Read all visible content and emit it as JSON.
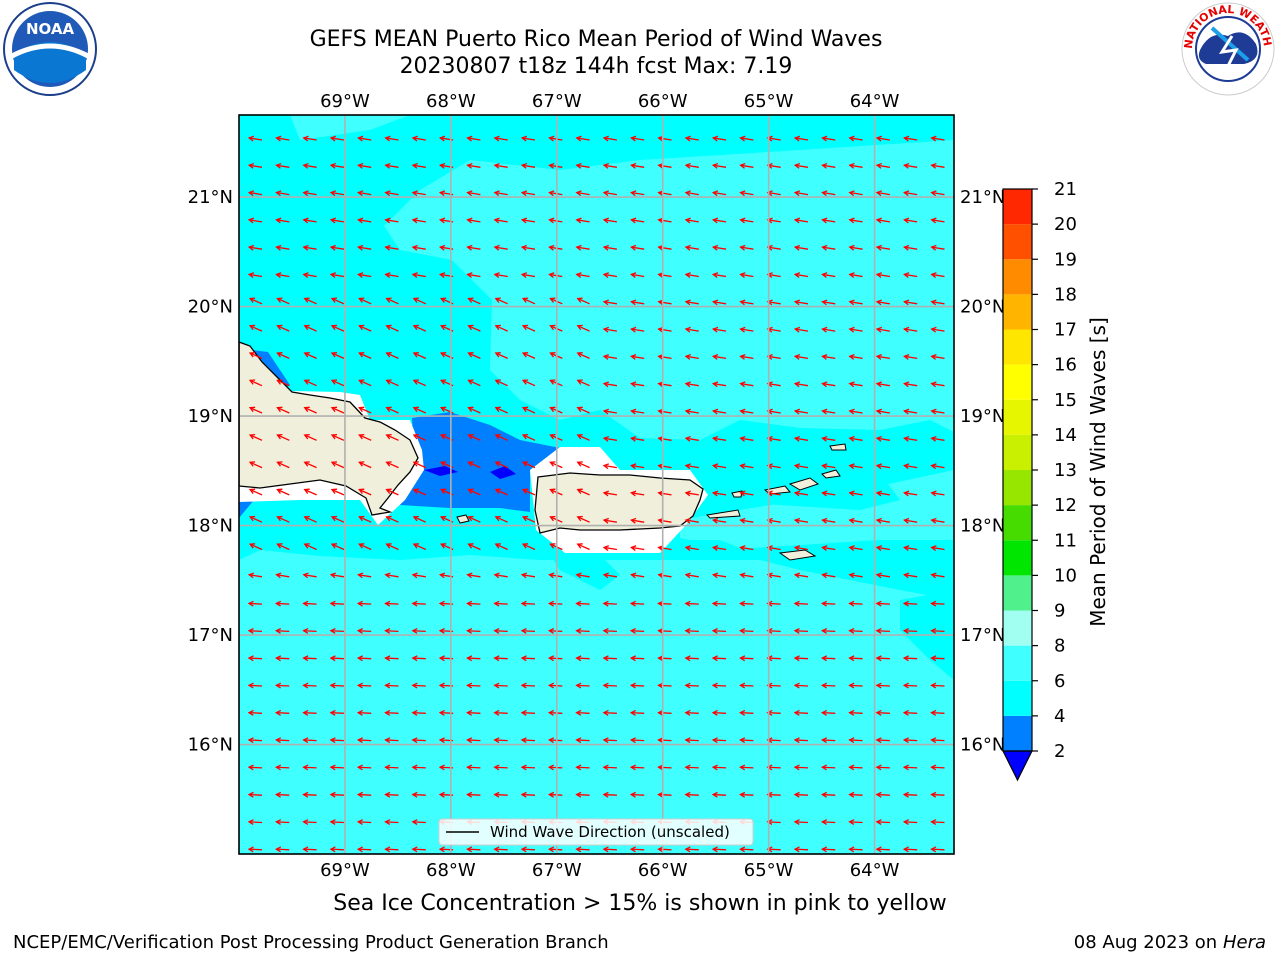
{
  "header": {
    "title_line1": "GEFS MEAN Puerto Rico Mean Period of Wind Waves",
    "title_line2": "20230807 t18z 144h fcst   Max: 7.19"
  },
  "logos": {
    "left": {
      "name": "noaa-logo",
      "text": "NOAA"
    },
    "right": {
      "name": "nws-logo",
      "text": "NATIONAL WEATHER SERVICE"
    }
  },
  "map": {
    "lon_ticks": [
      "69°W",
      "68°W",
      "67°W",
      "66°W",
      "65°W",
      "64°W"
    ],
    "lat_ticks": [
      "21°N",
      "20°N",
      "19°N",
      "18°N",
      "17°N",
      "16°N"
    ],
    "extent": {
      "lon_min": -70.0,
      "lon_max": -63.25,
      "lat_min": 15.0,
      "lat_max": 21.75
    },
    "land_color": "#efefdb",
    "ocean_color": "#00ffff",
    "arrow_color": "#ff0000",
    "legend_label": "Wind Wave Direction (unscaled)"
  },
  "colorbar": {
    "label": "Mean Period of Wind Waves [s]",
    "tick_labels": [
      "2",
      "4",
      "6",
      "8",
      "9",
      "10",
      "11",
      "12",
      "13",
      "14",
      "15",
      "16",
      "17",
      "18",
      "19",
      "20",
      "21"
    ],
    "colors": [
      "#0080ff",
      "#00ffff",
      "#40ffff",
      "#a0fff0",
      "#50f08c",
      "#00e600",
      "#46dc00",
      "#96e600",
      "#c8f000",
      "#e6f500",
      "#ffff00",
      "#ffe600",
      "#ffb400",
      "#ff8c00",
      "#ff5000",
      "#ff2800"
    ],
    "under_color": "#0000ff",
    "over_color": "#ff0000"
  },
  "caption": "Sea Ice Concentration > 15% is shown in pink to yellow",
  "footer": {
    "left": "NCEP/EMC/Verification Post Processing Product Generation Branch",
    "date": "08 Aug 2023 on",
    "host": "Hera"
  }
}
